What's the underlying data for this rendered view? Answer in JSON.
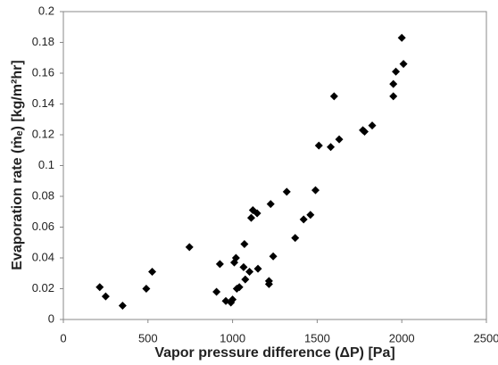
{
  "chart_data": {
    "type": "scatter",
    "xlabel": "Vapor pressure difference (ΔP) [Pa]",
    "ylabel": "Evaporation rate (ṁₑ) [kg/m²hr]",
    "x": [
      215,
      250,
      350,
      490,
      525,
      745,
      905,
      925,
      960,
      990,
      1000,
      1010,
      1020,
      1025,
      1040,
      1065,
      1070,
      1075,
      1100,
      1110,
      1120,
      1145,
      1150,
      1215,
      1215,
      1225,
      1240,
      1320,
      1370,
      1420,
      1460,
      1490,
      1510,
      1580,
      1600,
      1630,
      1770,
      1780,
      1825,
      1950,
      1950,
      1965,
      2000,
      2010
    ],
    "values": [
      0.021,
      0.015,
      0.009,
      0.02,
      0.031,
      0.047,
      0.018,
      0.036,
      0.012,
      0.011,
      0.013,
      0.037,
      0.04,
      0.02,
      0.021,
      0.034,
      0.049,
      0.026,
      0.031,
      0.066,
      0.071,
      0.069,
      0.033,
      0.023,
      0.025,
      0.075,
      0.041,
      0.083,
      0.053,
      0.065,
      0.068,
      0.084,
      0.113,
      0.112,
      0.145,
      0.117,
      0.123,
      0.122,
      0.126,
      0.153,
      0.145,
      0.161,
      0.183,
      0.166
    ],
    "color": "#000000",
    "xlim": [
      0,
      2500
    ],
    "xticks": [
      0,
      500,
      1000,
      1500,
      2000,
      2500
    ],
    "ylim": [
      0,
      0.2
    ],
    "yticks": [
      0,
      0.02,
      0.04,
      0.06,
      0.08,
      0.1,
      0.12,
      0.14,
      0.16,
      0.18,
      0.2
    ],
    "grid": false
  }
}
